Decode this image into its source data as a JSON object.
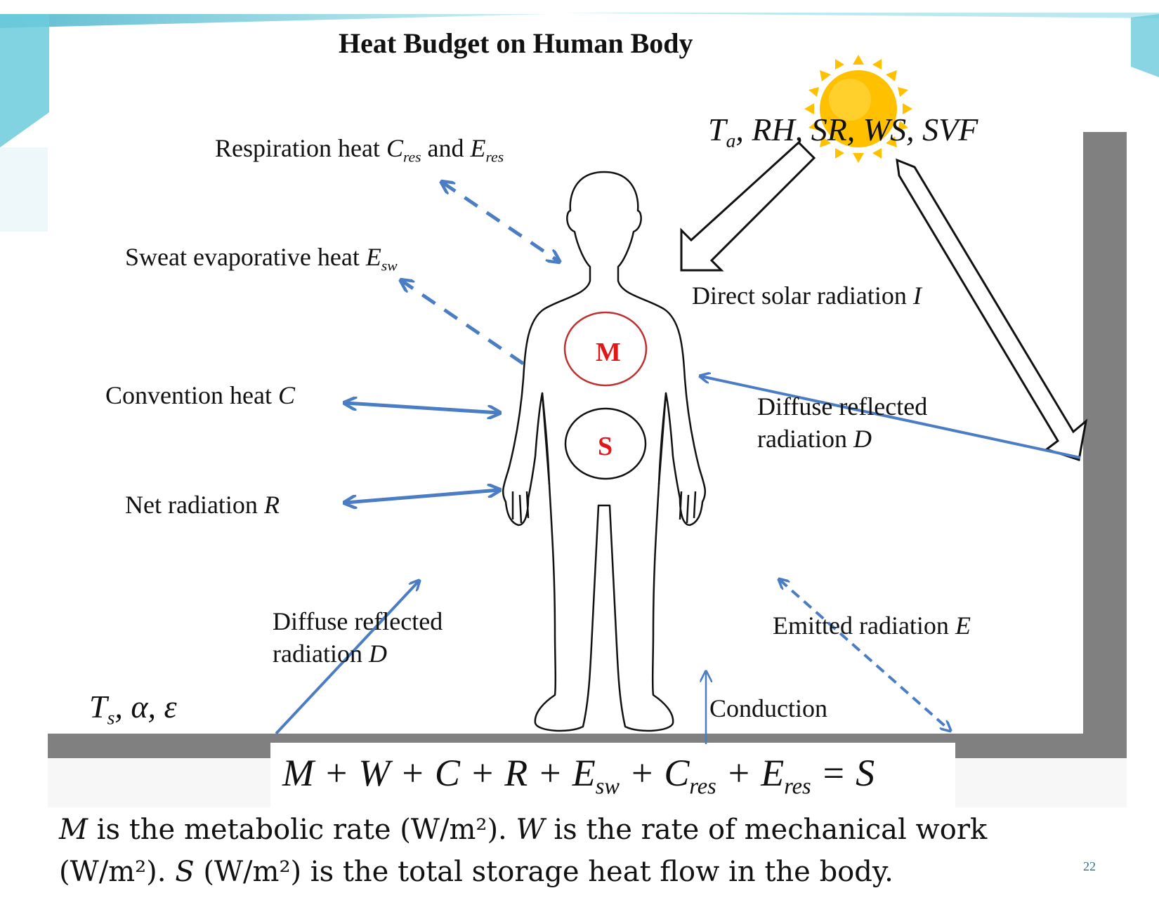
{
  "title": "Heat Budget on Human Body",
  "atmosphere": {
    "T": "T",
    "a_sub": "a",
    "rest": ", RH, SR, WS, SVF"
  },
  "surface": {
    "T": "T",
    "s_sub": "s",
    "rest": ", α, ε"
  },
  "labels": {
    "respiration_pre": "Respiration heat ",
    "respiration_c": "C",
    "respiration_c_sub": "res",
    "respiration_and": " and ",
    "respiration_e": "E",
    "respiration_e_sub": "res",
    "sweat_pre": "Sweat evaporative heat ",
    "sweat_e": "E",
    "sweat_sub": "sw",
    "convection_pre": "Convention heat ",
    "convection_c": "C",
    "net_pre": "Net radiation ",
    "net_r": "R",
    "direct_pre": "Direct solar radiation ",
    "direct_i": "I",
    "diffuse_wall_l1": "Diffuse reflected",
    "diffuse_wall_l2_pre": "radiation ",
    "diffuse_wall_d": "D",
    "diffuse_ground_l1": "Diffuse reflected",
    "diffuse_ground_l2_pre": "radiation ",
    "diffuse_ground_d": "D",
    "emitted_pre": "Emitted radiation ",
    "emitted_e": "E",
    "conduction": "Conduction"
  },
  "body": {
    "metabolic": "M",
    "storage": "S"
  },
  "equation": {
    "p1": "M + W + C + R + E",
    "sub_sw": "sw",
    "p2": " + C",
    "sub_res1": "res",
    "p3": " + E",
    "sub_res2": "res",
    "p4": " = S"
  },
  "caption": {
    "m": "M",
    "t1": " is the metabolic rate (W/m²). ",
    "w": "W",
    "t2": " is the rate of mechanical work (W/m²). ",
    "s": "S",
    "t3": " (W/m²) is the total storage heat flow in the body."
  },
  "page_number": "22",
  "colors": {
    "arrow_blue": "#4a7dc4",
    "ground_gray": "#808080",
    "sun_yellow": "#ffc000",
    "metabolic_red": "#c03030",
    "accent_teal": "#7fd0de"
  }
}
